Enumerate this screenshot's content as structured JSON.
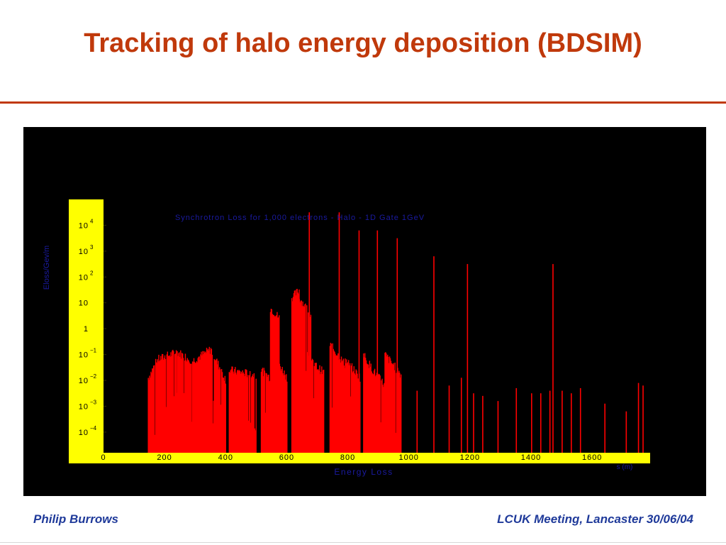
{
  "slide": {
    "title": "Tracking of halo energy deposition (BDSIM)",
    "footer_left": "Philip Burrows",
    "footer_right": "LCUK Meeting, Lancaster 30/06/04"
  },
  "colors": {
    "title": "#c0390b",
    "footer": "#1f3a9a",
    "panel_bg": "#000000",
    "axis_frame": "#ffff00",
    "bars": "#ff0000",
    "plot_text": "#1a1aa0",
    "tick_text": "#000000"
  },
  "chart_data": {
    "type": "bar",
    "title": "Synchrotron Loss for 1,000 electrons - Halo - 1D Gate 1GeV",
    "xlabel": "Energy Loss",
    "xunit": "s (m)",
    "ylabel": "Eloss/Gev/m",
    "log_scale_y": true,
    "xlim": [
      0,
      1790
    ],
    "ylim_exponent": [
      -4.8,
      5.0
    ],
    "x_ticks": [
      {
        "value": 0,
        "label": "0"
      },
      {
        "value": 200,
        "label": "200"
      },
      {
        "value": 400,
        "label": "400"
      },
      {
        "value": 600,
        "label": "600"
      },
      {
        "value": 800,
        "label": "800"
      },
      {
        "value": 1000,
        "label": "1000"
      },
      {
        "value": 1200,
        "label": "1200"
      },
      {
        "value": 1400,
        "label": "1400"
      },
      {
        "value": 1600,
        "label": "1600"
      }
    ],
    "y_ticks": [
      {
        "exponent": 4,
        "base": "10",
        "sup": "4"
      },
      {
        "exponent": 3,
        "base": "10",
        "sup": "3"
      },
      {
        "exponent": 2,
        "base": "10",
        "sup": "2"
      },
      {
        "exponent": 1,
        "base": "10",
        "sup": ""
      },
      {
        "exponent": 0,
        "base": "1",
        "sup": ""
      },
      {
        "exponent": -1,
        "base": "10",
        "sup": "−1"
      },
      {
        "exponent": -2,
        "base": "10",
        "sup": "−2"
      },
      {
        "exponent": -3,
        "base": "10",
        "sup": "−3"
      },
      {
        "exponent": -4,
        "base": "10",
        "sup": "−4"
      }
    ],
    "series": [
      {
        "segments": [
          {
            "x0": 145,
            "x1": 175,
            "logy_from": -1.9,
            "logy_to": -1.2
          },
          {
            "x0": 175,
            "x1": 240,
            "logy_from": -1.2,
            "logy_to": -0.9
          },
          {
            "x0": 240,
            "x1": 290,
            "logy_from": -0.9,
            "logy_to": -1.25
          },
          {
            "x0": 290,
            "x1": 350,
            "logy_from": -1.25,
            "logy_to": -0.8
          },
          {
            "x0": 350,
            "x1": 400,
            "logy_from": -0.8,
            "logy_to": -2.0
          },
          {
            "x0": 410,
            "x1": 500,
            "logy_from": -1.6,
            "logy_to": -1.8
          },
          {
            "x0": 515,
            "x1": 545,
            "logy_from": -1.6,
            "logy_to": -1.9
          },
          {
            "x0": 545,
            "x1": 575,
            "logy_from": 0.8,
            "logy_to": 0.4
          },
          {
            "x0": 575,
            "x1": 600,
            "logy_from": -1.4,
            "logy_to": -1.9
          },
          {
            "x0": 615,
            "x1": 640,
            "logy_from": 1.2,
            "logy_to": 1.5
          },
          {
            "x0": 640,
            "x1": 680,
            "logy_from": 1.2,
            "logy_to": 0.5
          },
          {
            "x0": 680,
            "x1": 720,
            "logy_from": -1.3,
            "logy_to": -1.7
          },
          {
            "x0": 740,
            "x1": 790,
            "logy_from": -0.6,
            "logy_to": -1.4
          },
          {
            "x0": 790,
            "x1": 840,
            "logy_from": -1.2,
            "logy_to": -1.9
          },
          {
            "x0": 850,
            "x1": 880,
            "logy_from": -1.0,
            "logy_to": -1.6
          },
          {
            "x0": 880,
            "x1": 920,
            "logy_from": -1.6,
            "logy_to": -2.2
          },
          {
            "x0": 920,
            "x1": 975,
            "logy_from": -1.0,
            "logy_to": -1.8
          }
        ],
        "peaks": [
          {
            "x": 672,
            "logy": 4.5
          },
          {
            "x": 770,
            "logy": 4.5
          },
          {
            "x": 835,
            "logy": 3.8
          },
          {
            "x": 895,
            "logy": 3.8
          },
          {
            "x": 960,
            "logy": 3.5
          },
          {
            "x": 1080,
            "logy": 2.8
          },
          {
            "x": 1190,
            "logy": 2.5
          },
          {
            "x": 1470,
            "logy": 2.5
          },
          {
            "x": 1025,
            "logy": -2.4
          },
          {
            "x": 1130,
            "logy": -2.2
          },
          {
            "x": 1170,
            "logy": -1.9
          },
          {
            "x": 1210,
            "logy": -2.5
          },
          {
            "x": 1240,
            "logy": -2.6
          },
          {
            "x": 1290,
            "logy": -2.8
          },
          {
            "x": 1350,
            "logy": -2.3
          },
          {
            "x": 1400,
            "logy": -2.5
          },
          {
            "x": 1430,
            "logy": -2.5
          },
          {
            "x": 1460,
            "logy": -2.4
          },
          {
            "x": 1500,
            "logy": -2.4
          },
          {
            "x": 1530,
            "logy": -2.5
          },
          {
            "x": 1560,
            "logy": -2.3
          },
          {
            "x": 1640,
            "logy": -2.9
          },
          {
            "x": 1710,
            "logy": -3.2
          },
          {
            "x": 1750,
            "logy": -2.1
          },
          {
            "x": 1765,
            "logy": -2.2
          }
        ]
      }
    ]
  }
}
